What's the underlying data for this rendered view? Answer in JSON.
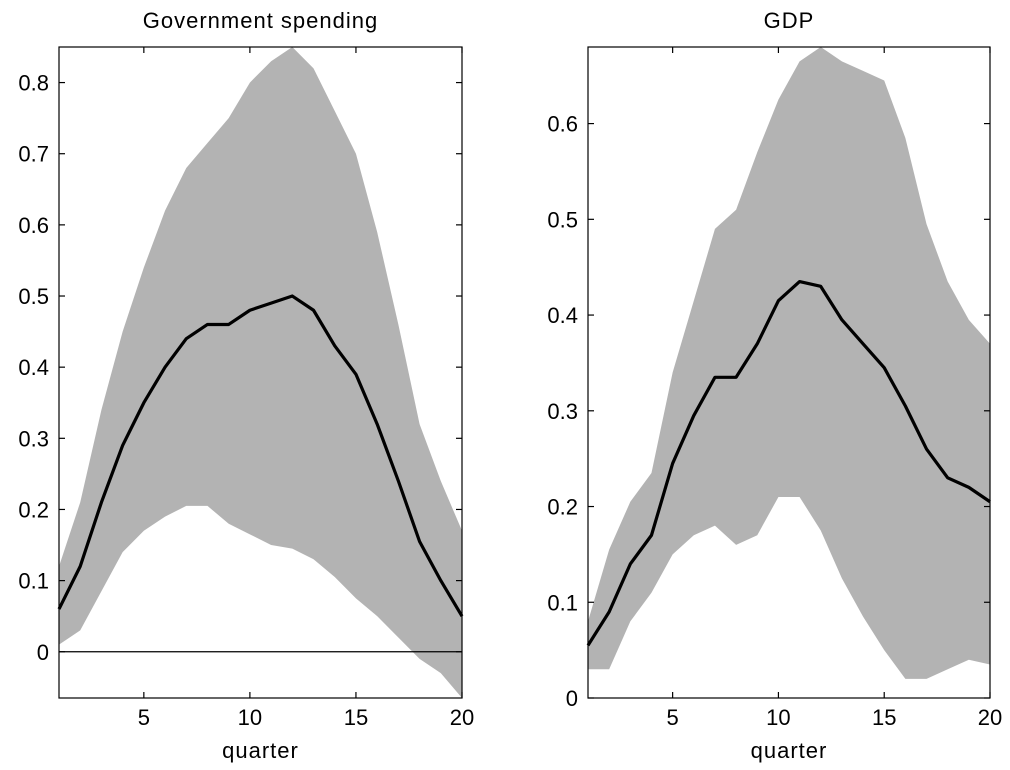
{
  "chart_data": [
    {
      "type": "line",
      "title": "Government spending",
      "xlabel": "quarter",
      "ylabel": "",
      "xlim": [
        1,
        20
      ],
      "ylim": [
        -0.065,
        0.85
      ],
      "xticks": [
        5,
        10,
        15,
        20
      ],
      "yticks": [
        0,
        0.1,
        0.2,
        0.3,
        0.4,
        0.5,
        0.6,
        0.7,
        0.8
      ],
      "zero_line": true,
      "band_color": "#b3b3b3",
      "line_color": "#000000",
      "x": [
        1,
        2,
        3,
        4,
        5,
        6,
        7,
        8,
        9,
        10,
        11,
        12,
        13,
        14,
        15,
        16,
        17,
        18,
        19,
        20
      ],
      "series": [
        {
          "name": "",
          "role": "median",
          "values": [
            0.06,
            0.12,
            0.21,
            0.29,
            0.35,
            0.4,
            0.44,
            0.46,
            0.46,
            0.48,
            0.49,
            0.5,
            0.48,
            0.43,
            0.39,
            0.32,
            0.24,
            0.155,
            0.1,
            0.05
          ]
        },
        {
          "name": "",
          "role": "upper",
          "values": [
            0.12,
            0.21,
            0.34,
            0.45,
            0.54,
            0.62,
            0.68,
            0.715,
            0.75,
            0.8,
            0.83,
            0.85,
            0.82,
            0.76,
            0.7,
            0.59,
            0.46,
            0.32,
            0.24,
            0.17
          ]
        },
        {
          "name": "",
          "role": "lower",
          "values": [
            0.01,
            0.03,
            0.085,
            0.14,
            0.17,
            0.19,
            0.205,
            0.205,
            0.18,
            0.165,
            0.15,
            0.145,
            0.13,
            0.105,
            0.075,
            0.05,
            0.02,
            -0.01,
            -0.03,
            -0.065
          ]
        }
      ]
    },
    {
      "type": "line",
      "title": "GDP",
      "xlabel": "quarter",
      "ylabel": "",
      "xlim": [
        1,
        20
      ],
      "ylim": [
        0,
        0.68
      ],
      "xticks": [
        5,
        10,
        15,
        20
      ],
      "yticks": [
        0,
        0.1,
        0.2,
        0.3,
        0.4,
        0.5,
        0.6
      ],
      "zero_line": false,
      "band_color": "#b3b3b3",
      "line_color": "#000000",
      "x": [
        1,
        2,
        3,
        4,
        5,
        6,
        7,
        8,
        9,
        10,
        11,
        12,
        13,
        14,
        15,
        16,
        17,
        18,
        19,
        20
      ],
      "series": [
        {
          "name": "",
          "role": "median",
          "values": [
            0.055,
            0.09,
            0.14,
            0.17,
            0.245,
            0.295,
            0.335,
            0.335,
            0.37,
            0.415,
            0.435,
            0.43,
            0.395,
            0.37,
            0.345,
            0.305,
            0.26,
            0.23,
            0.22,
            0.205
          ]
        },
        {
          "name": "",
          "role": "upper",
          "values": [
            0.08,
            0.155,
            0.205,
            0.235,
            0.34,
            0.415,
            0.49,
            0.51,
            0.57,
            0.625,
            0.665,
            0.68,
            0.665,
            0.655,
            0.645,
            0.585,
            0.495,
            0.435,
            0.395,
            0.37
          ]
        },
        {
          "name": "",
          "role": "lower",
          "values": [
            0.03,
            0.03,
            0.08,
            0.11,
            0.15,
            0.17,
            0.18,
            0.16,
            0.17,
            0.21,
            0.21,
            0.175,
            0.125,
            0.085,
            0.05,
            0.02,
            0.02,
            0.03,
            0.04,
            0.035
          ]
        }
      ]
    }
  ]
}
